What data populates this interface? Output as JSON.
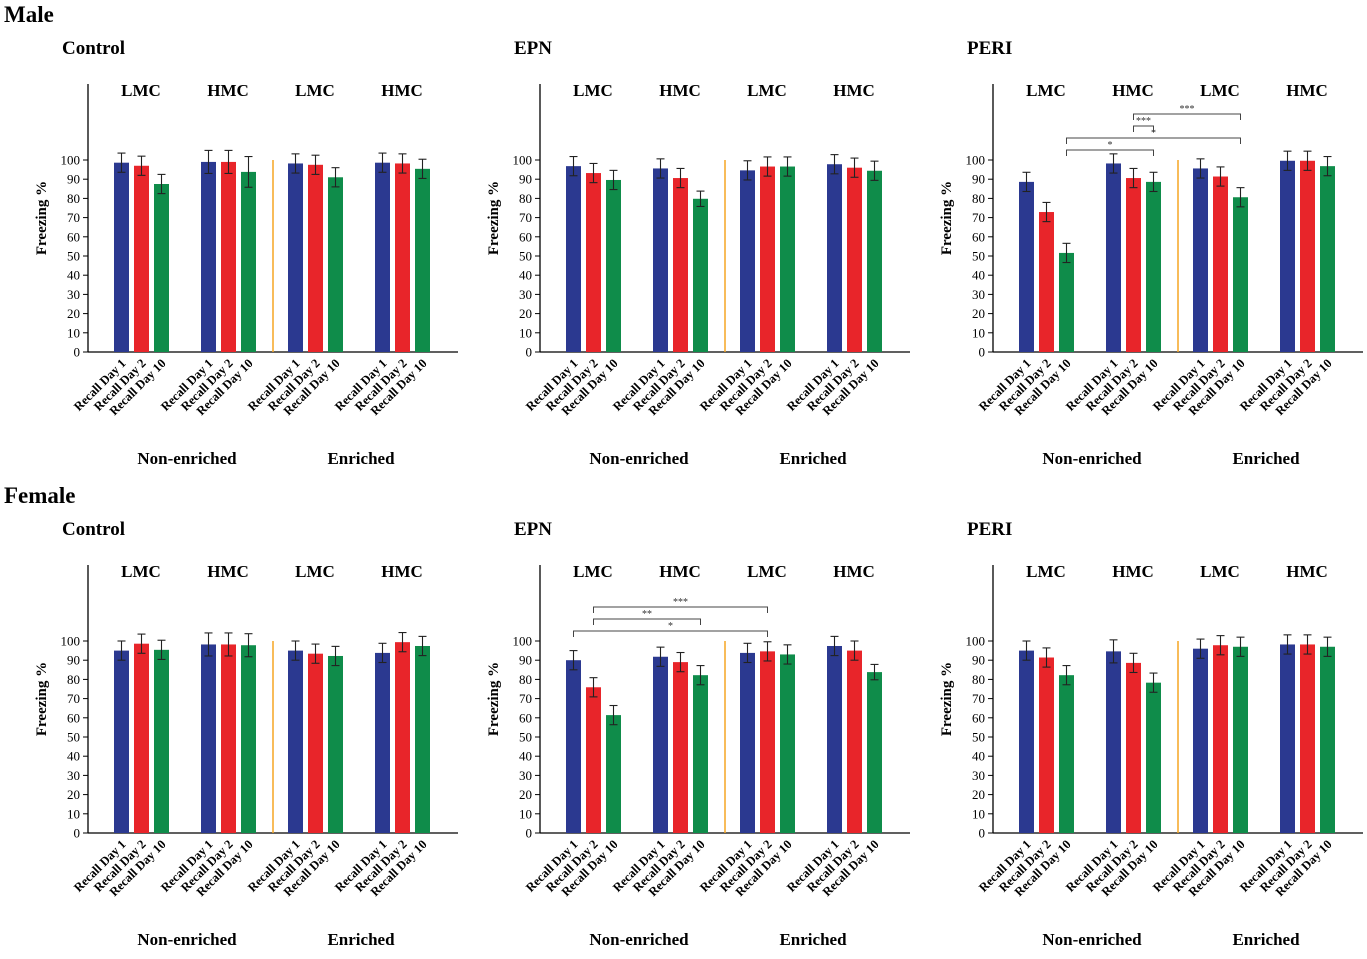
{
  "sections": [
    "Male",
    "Female"
  ],
  "colors": {
    "Recall Day 1": "#2b3990",
    "Recall Day 2": "#e8252a",
    "Recall Day 10": "#0f8c4a",
    "divider": "#f5a623"
  },
  "chart_data": [
    {
      "type": "bar",
      "title": "Control",
      "section": "Male",
      "ylabel": "Freezing %",
      "ylim": [
        0,
        100
      ],
      "yticks": [
        0,
        10,
        20,
        30,
        40,
        50,
        60,
        70,
        80,
        90,
        100
      ],
      "series_names": [
        "Recall Day 1",
        "Recall Day 2",
        "Recall Day 10"
      ],
      "groups": [
        "LMC",
        "HMC",
        "LMC",
        "HMC"
      ],
      "conditions": [
        "Non-enriched",
        "Enriched"
      ],
      "values": [
        [
          98.6,
          97.0,
          87.5
        ],
        [
          99.0,
          99.0,
          93.8
        ],
        [
          98.2,
          97.5,
          91.0
        ],
        [
          98.6,
          98.2,
          95.4
        ]
      ],
      "errors": [
        [
          5,
          5,
          5
        ],
        [
          6,
          6,
          8
        ],
        [
          5,
          5,
          5
        ],
        [
          5,
          5,
          5
        ]
      ],
      "significance": []
    },
    {
      "type": "bar",
      "title": "EPN",
      "section": "Male",
      "ylabel": "Freezing %",
      "ylim": [
        0,
        100
      ],
      "yticks": [
        0,
        10,
        20,
        30,
        40,
        50,
        60,
        70,
        80,
        90,
        100
      ],
      "series_names": [
        "Recall Day 1",
        "Recall Day 2",
        "Recall Day 10"
      ],
      "groups": [
        "LMC",
        "HMC",
        "LMC",
        "HMC"
      ],
      "conditions": [
        "Non-enriched",
        "Enriched"
      ],
      "values": [
        [
          96.8,
          93.2,
          89.6
        ],
        [
          95.6,
          90.6,
          79.8
        ],
        [
          94.6,
          96.6,
          96.6
        ],
        [
          97.8,
          96.0,
          94.4
        ]
      ],
      "errors": [
        [
          5,
          5,
          5
        ],
        [
          5,
          5,
          4
        ],
        [
          5,
          5,
          5
        ],
        [
          5,
          5,
          5
        ]
      ],
      "significance": []
    },
    {
      "type": "bar",
      "title": "PERI",
      "section": "Male",
      "ylabel": "Freezing %",
      "ylim": [
        0,
        100
      ],
      "yticks": [
        0,
        10,
        20,
        30,
        40,
        50,
        60,
        70,
        80,
        90,
        100
      ],
      "series_names": [
        "Recall Day 1",
        "Recall Day 2",
        "Recall Day 10"
      ],
      "groups": [
        "LMC",
        "HMC",
        "LMC",
        "HMC"
      ],
      "conditions": [
        "Non-enriched",
        "Enriched"
      ],
      "values": [
        [
          88.6,
          72.9,
          51.6
        ],
        [
          98.2,
          90.6,
          88.6
        ],
        [
          95.6,
          91.4,
          80.6
        ],
        [
          99.6,
          99.6,
          96.8
        ]
      ],
      "errors": [
        [
          5,
          5,
          5
        ],
        [
          5,
          5,
          5
        ],
        [
          5,
          5,
          5
        ],
        [
          5,
          5,
          5
        ]
      ],
      "significance": [
        {
          "from": [
            0,
            2
          ],
          "to": [
            1,
            2
          ],
          "label": "*"
        },
        {
          "from": [
            0,
            2
          ],
          "to": [
            2,
            2
          ],
          "label": "*"
        },
        {
          "from": [
            1,
            1
          ],
          "to": [
            1,
            2
          ],
          "label": "***"
        },
        {
          "from": [
            1,
            1
          ],
          "to": [
            2,
            2
          ],
          "label": "***"
        }
      ]
    },
    {
      "type": "bar",
      "title": "Control",
      "section": "Female",
      "ylabel": "Freezing %",
      "ylim": [
        0,
        100
      ],
      "yticks": [
        0,
        10,
        20,
        30,
        40,
        50,
        60,
        70,
        80,
        90,
        100
      ],
      "series_names": [
        "Recall Day 1",
        "Recall Day 2",
        "Recall Day 10"
      ],
      "groups": [
        "LMC",
        "HMC",
        "LMC",
        "HMC"
      ],
      "conditions": [
        "Non-enriched",
        "Enriched"
      ],
      "values": [
        [
          95.0,
          98.6,
          95.4
        ],
        [
          98.2,
          98.2,
          97.8
        ],
        [
          95.0,
          93.4,
          92.2
        ],
        [
          93.8,
          99.4,
          97.4
        ]
      ],
      "errors": [
        [
          5,
          5,
          5
        ],
        [
          6,
          6,
          6
        ],
        [
          5,
          5,
          5
        ],
        [
          5,
          5,
          5
        ]
      ],
      "significance": []
    },
    {
      "type": "bar",
      "title": "EPN",
      "section": "Female",
      "ylabel": "Freezing %",
      "ylim": [
        0,
        100
      ],
      "yticks": [
        0,
        10,
        20,
        30,
        40,
        50,
        60,
        70,
        80,
        90,
        100
      ],
      "series_names": [
        "Recall Day 1",
        "Recall Day 2",
        "Recall Day 10"
      ],
      "groups": [
        "LMC",
        "HMC",
        "LMC",
        "HMC"
      ],
      "conditions": [
        "Non-enriched",
        "Enriched"
      ],
      "values": [
        [
          90.0,
          75.9,
          61.4
        ],
        [
          91.8,
          89.0,
          82.2
        ],
        [
          93.8,
          94.6,
          93.0
        ],
        [
          97.4,
          95.0,
          83.8
        ]
      ],
      "errors": [
        [
          5,
          5,
          5
        ],
        [
          5,
          5,
          5
        ],
        [
          5,
          5,
          5
        ],
        [
          5,
          5,
          4
        ]
      ],
      "significance": [
        {
          "from": [
            0,
            0
          ],
          "to": [
            2,
            1
          ],
          "label": "*"
        },
        {
          "from": [
            0,
            1
          ],
          "to": [
            1,
            2
          ],
          "label": "**"
        },
        {
          "from": [
            0,
            1
          ],
          "to": [
            2,
            1
          ],
          "label": "***"
        }
      ]
    },
    {
      "type": "bar",
      "title": "PERI",
      "section": "Female",
      "ylabel": "Freezing %",
      "ylim": [
        0,
        100
      ],
      "yticks": [
        0,
        10,
        20,
        30,
        40,
        50,
        60,
        70,
        80,
        90,
        100
      ],
      "series_names": [
        "Recall Day 1",
        "Recall Day 2",
        "Recall Day 10"
      ],
      "groups": [
        "LMC",
        "HMC",
        "LMC",
        "HMC"
      ],
      "conditions": [
        "Non-enriched",
        "Enriched"
      ],
      "values": [
        [
          95.0,
          91.4,
          82.2
        ],
        [
          94.6,
          88.6,
          78.3
        ],
        [
          96.0,
          97.8,
          97.0
        ],
        [
          98.2,
          98.2,
          97.0
        ]
      ],
      "errors": [
        [
          5,
          5,
          5
        ],
        [
          6,
          5,
          5
        ],
        [
          5,
          5,
          5
        ],
        [
          5,
          5,
          5
        ]
      ],
      "significance": []
    }
  ]
}
